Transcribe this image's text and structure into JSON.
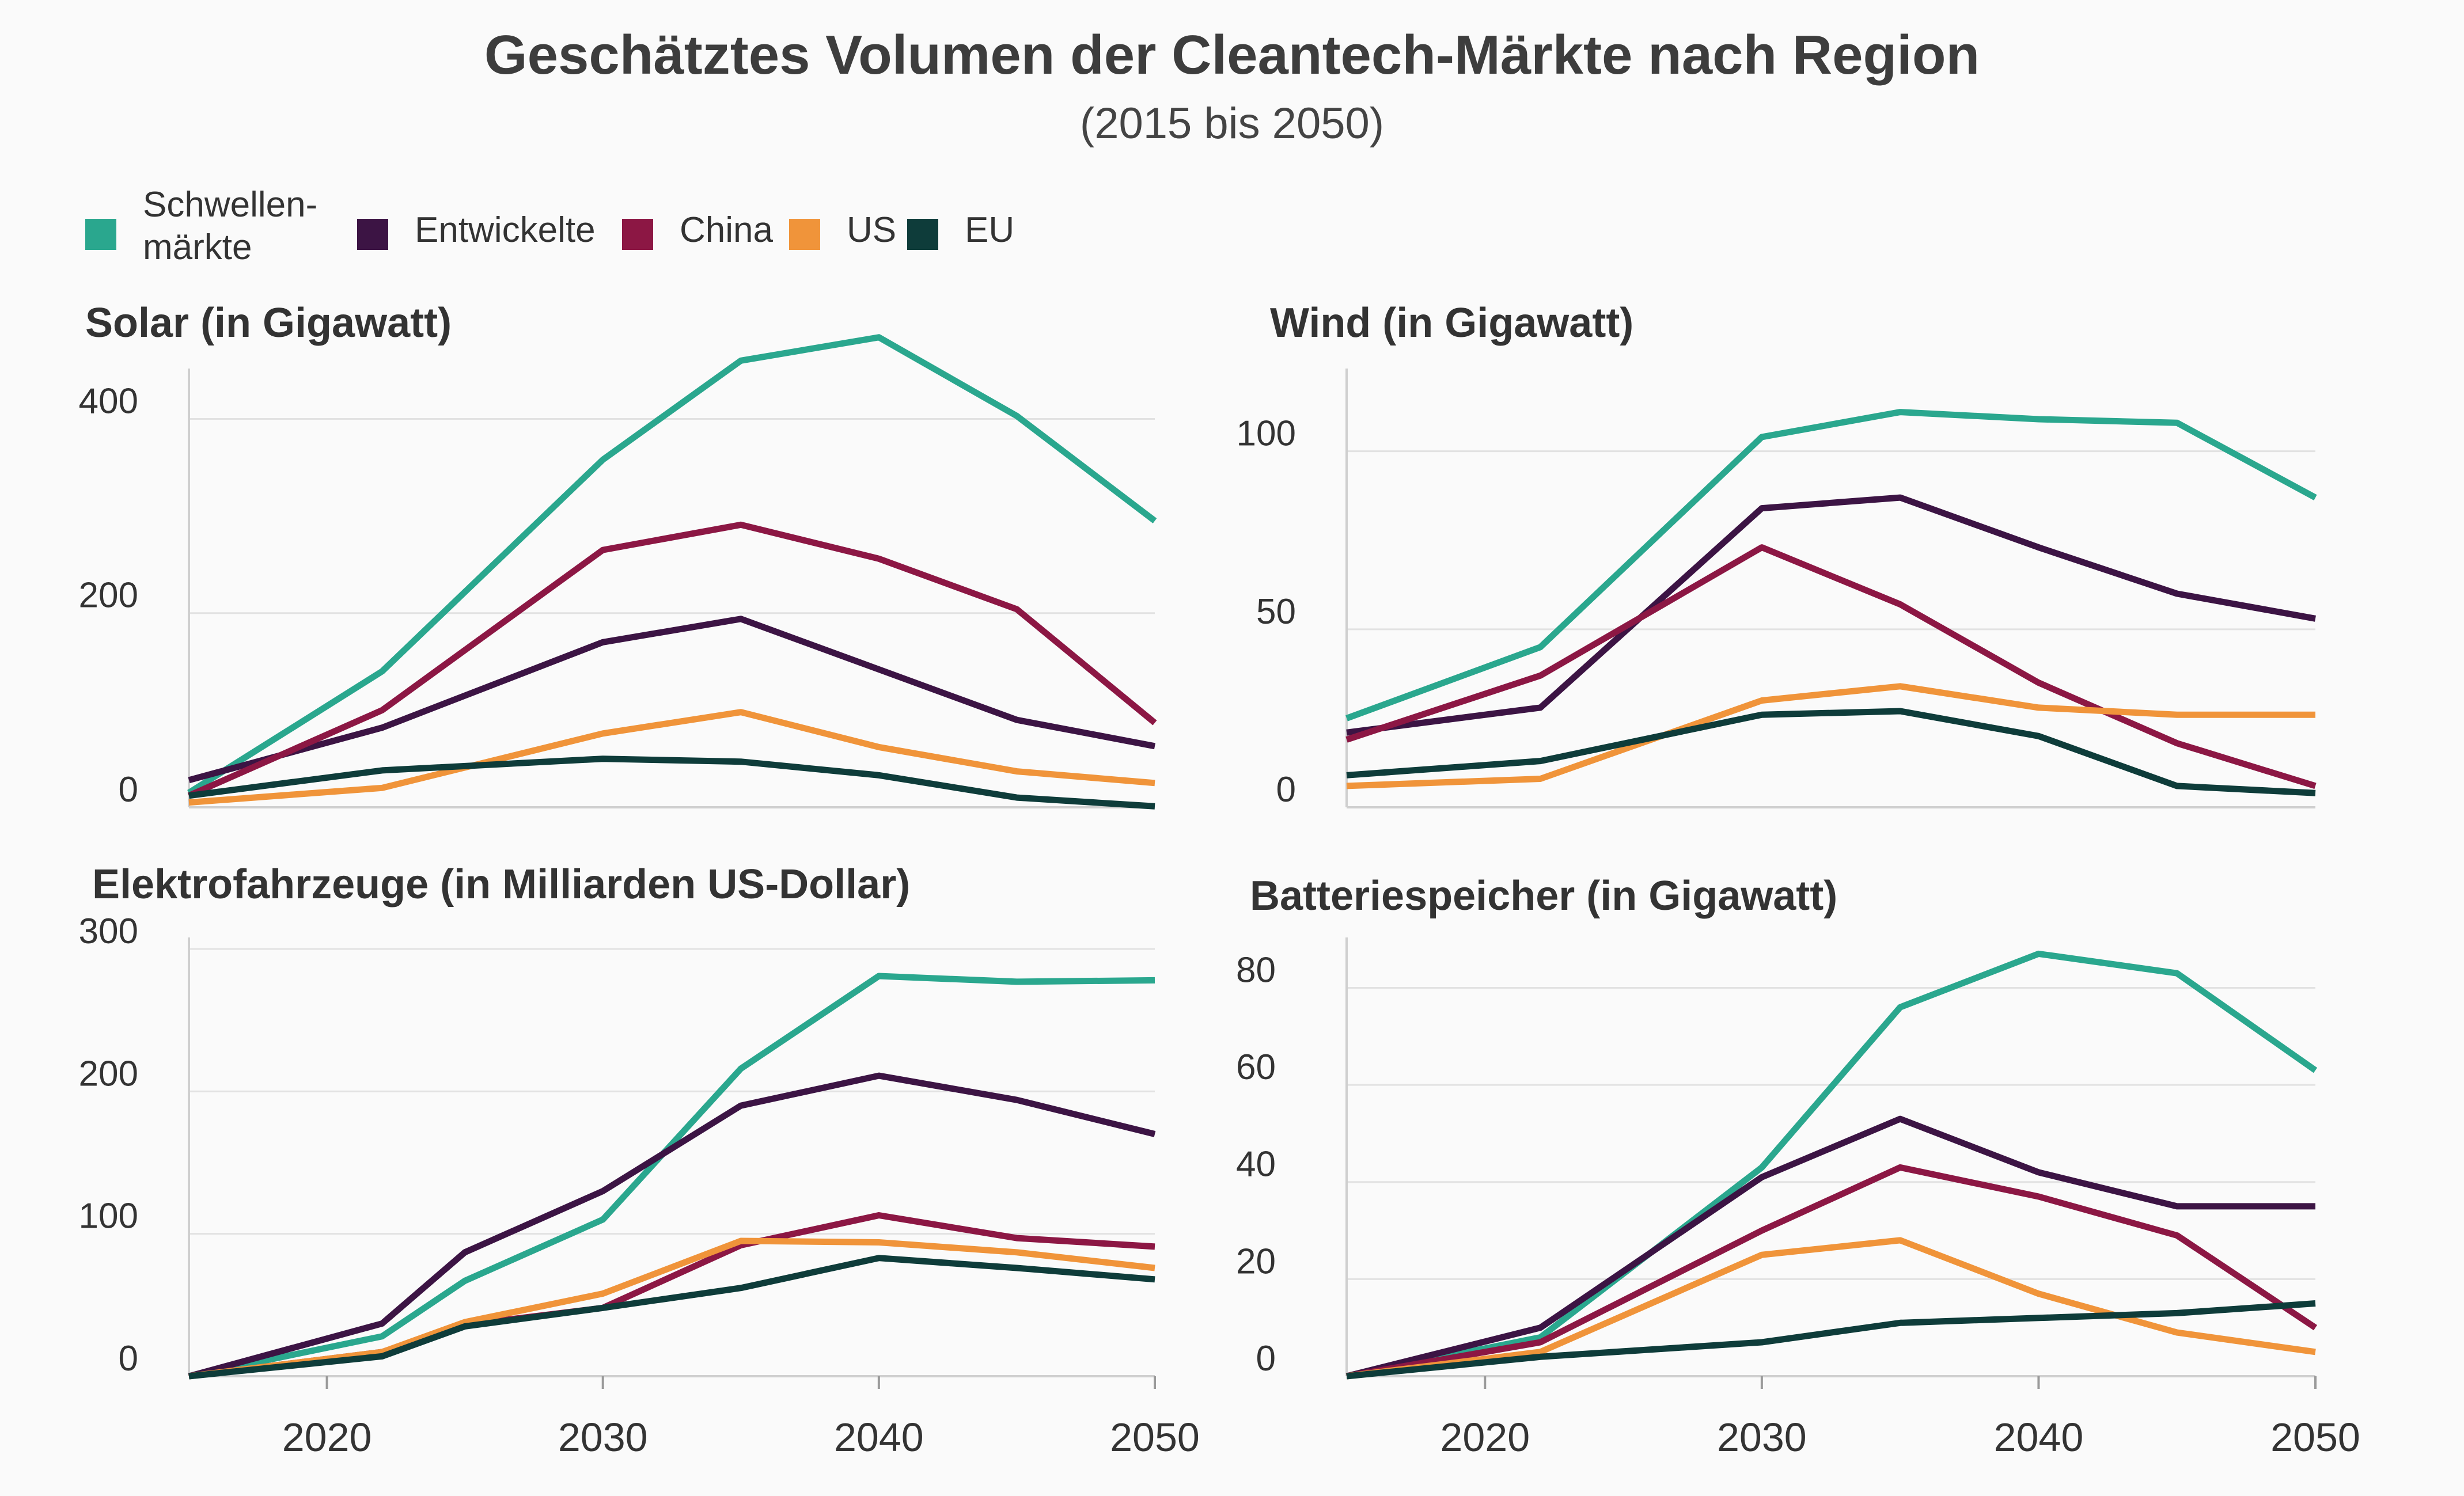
{
  "title": "Geschätztes Volumen  der Cleantech-Märkte nach Region",
  "subtitle": "(2015 bis 2050)",
  "legend": [
    {
      "lines": [
        "Schwellen-",
        "märkte"
      ],
      "color": "#2aa78e"
    },
    {
      "lines": [
        "Entwickelte"
      ],
      "color": "#3c1444"
    },
    {
      "lines": [
        "China"
      ],
      "color": "#8c1744"
    },
    {
      "lines": [
        "US"
      ],
      "color": "#f0943a"
    },
    {
      "lines": [
        "EU"
      ],
      "color": "#0e3c3a"
    }
  ],
  "chart_data": [
    {
      "type": "line",
      "title": "Solar (in Gigawatt)",
      "x": [
        2015,
        2022,
        2030,
        2035,
        2040,
        2045,
        2050
      ],
      "xticks": [
        2020,
        2030,
        2040,
        2050
      ],
      "ylim": [
        0,
        440
      ],
      "yticks": [
        0,
        200,
        400
      ],
      "show_xticks": false,
      "series": [
        {
          "name": "Schwellenmärkte",
          "color": "#2aa78e",
          "values": [
            15,
            140,
            358,
            460,
            484,
            403,
            295
          ]
        },
        {
          "name": "Entwickelte",
          "color": "#3c1444",
          "values": [
            28,
            82,
            170,
            194,
            142,
            90,
            63
          ]
        },
        {
          "name": "China",
          "color": "#8c1744",
          "values": [
            12,
            100,
            265,
            291,
            256,
            204,
            87
          ]
        },
        {
          "name": "US",
          "color": "#f0943a",
          "values": [
            5,
            20,
            76,
            98,
            62,
            37,
            25
          ]
        },
        {
          "name": "EU",
          "color": "#0e3c3a",
          "values": [
            12,
            38,
            50,
            47,
            33,
            10,
            1
          ]
        }
      ]
    },
    {
      "type": "line",
      "title": "Wind (in Gigawatt)",
      "x": [
        2015,
        2022,
        2030,
        2035,
        2040,
        2045,
        2050
      ],
      "xticks": [
        2020,
        2030,
        2040,
        2050
      ],
      "ylim": [
        0,
        120
      ],
      "yticks": [
        0,
        50,
        100
      ],
      "show_xticks": false,
      "series": [
        {
          "name": "Schwellenmärkte",
          "color": "#2aa78e",
          "values": [
            25,
            45,
            104,
            111,
            109,
            108,
            87
          ]
        },
        {
          "name": "Entwickelte",
          "color": "#3c1444",
          "values": [
            21,
            28,
            84,
            87,
            73,
            60,
            53
          ]
        },
        {
          "name": "China",
          "color": "#8c1744",
          "values": [
            19,
            37,
            73,
            57,
            35,
            18,
            6
          ]
        },
        {
          "name": "US",
          "color": "#f0943a",
          "values": [
            6,
            8,
            30,
            34,
            28,
            26,
            26
          ]
        },
        {
          "name": "EU",
          "color": "#0e3c3a",
          "values": [
            9,
            13,
            26,
            27,
            20,
            6,
            4
          ]
        }
      ]
    },
    {
      "type": "line",
      "title": "Elektrofahrzeuge  (in Milliarden US-Dollar)",
      "x": [
        2015,
        2022,
        2025,
        2030,
        2035,
        2040,
        2045,
        2050
      ],
      "xticks": [
        2020,
        2030,
        2040,
        2050
      ],
      "ylim": [
        0,
        300
      ],
      "yticks": [
        0,
        100,
        200,
        300
      ],
      "show_xticks": true,
      "series": [
        {
          "name": "Schwellenmärkte",
          "color": "#2aa78e",
          "values": [
            0,
            28,
            67,
            110,
            216,
            281,
            277,
            278
          ]
        },
        {
          "name": "Entwickelte",
          "color": "#3c1444",
          "values": [
            0,
            37,
            87,
            130,
            190,
            211,
            194,
            170
          ]
        },
        {
          "name": "China",
          "color": "#8c1744",
          "values": [
            0,
            17,
            36,
            48,
            92,
            113,
            97,
            91
          ]
        },
        {
          "name": "US",
          "color": "#f0943a",
          "values": [
            0,
            17,
            38,
            58,
            95,
            94,
            87,
            76
          ]
        },
        {
          "name": "EU",
          "color": "#0e3c3a",
          "values": [
            0,
            14,
            35,
            48,
            62,
            83,
            76,
            68
          ]
        }
      ]
    },
    {
      "type": "line",
      "title": "Batteriespeicher (in Gigawatt)",
      "x": [
        2015,
        2022,
        2030,
        2035,
        2040,
        2045,
        2050
      ],
      "xticks": [
        2020,
        2030,
        2040,
        2050
      ],
      "ylim": [
        0,
        88
      ],
      "yticks": [
        0,
        20,
        40,
        60,
        80
      ],
      "show_xticks": true,
      "series": [
        {
          "name": "Schwellenmärkte",
          "color": "#2aa78e",
          "values": [
            0,
            8,
            43,
            76,
            87,
            83,
            63
          ]
        },
        {
          "name": "Entwickelte",
          "color": "#3c1444",
          "values": [
            0,
            10,
            41,
            53,
            42,
            35,
            35
          ]
        },
        {
          "name": "China",
          "color": "#8c1744",
          "values": [
            0,
            7,
            30,
            43,
            37,
            29,
            10
          ]
        },
        {
          "name": "US",
          "color": "#f0943a",
          "values": [
            0,
            5,
            25,
            28,
            17,
            9,
            5
          ]
        },
        {
          "name": "EU",
          "color": "#0e3c3a",
          "values": [
            0,
            4,
            7,
            11,
            12,
            13,
            15
          ]
        }
      ]
    }
  ]
}
